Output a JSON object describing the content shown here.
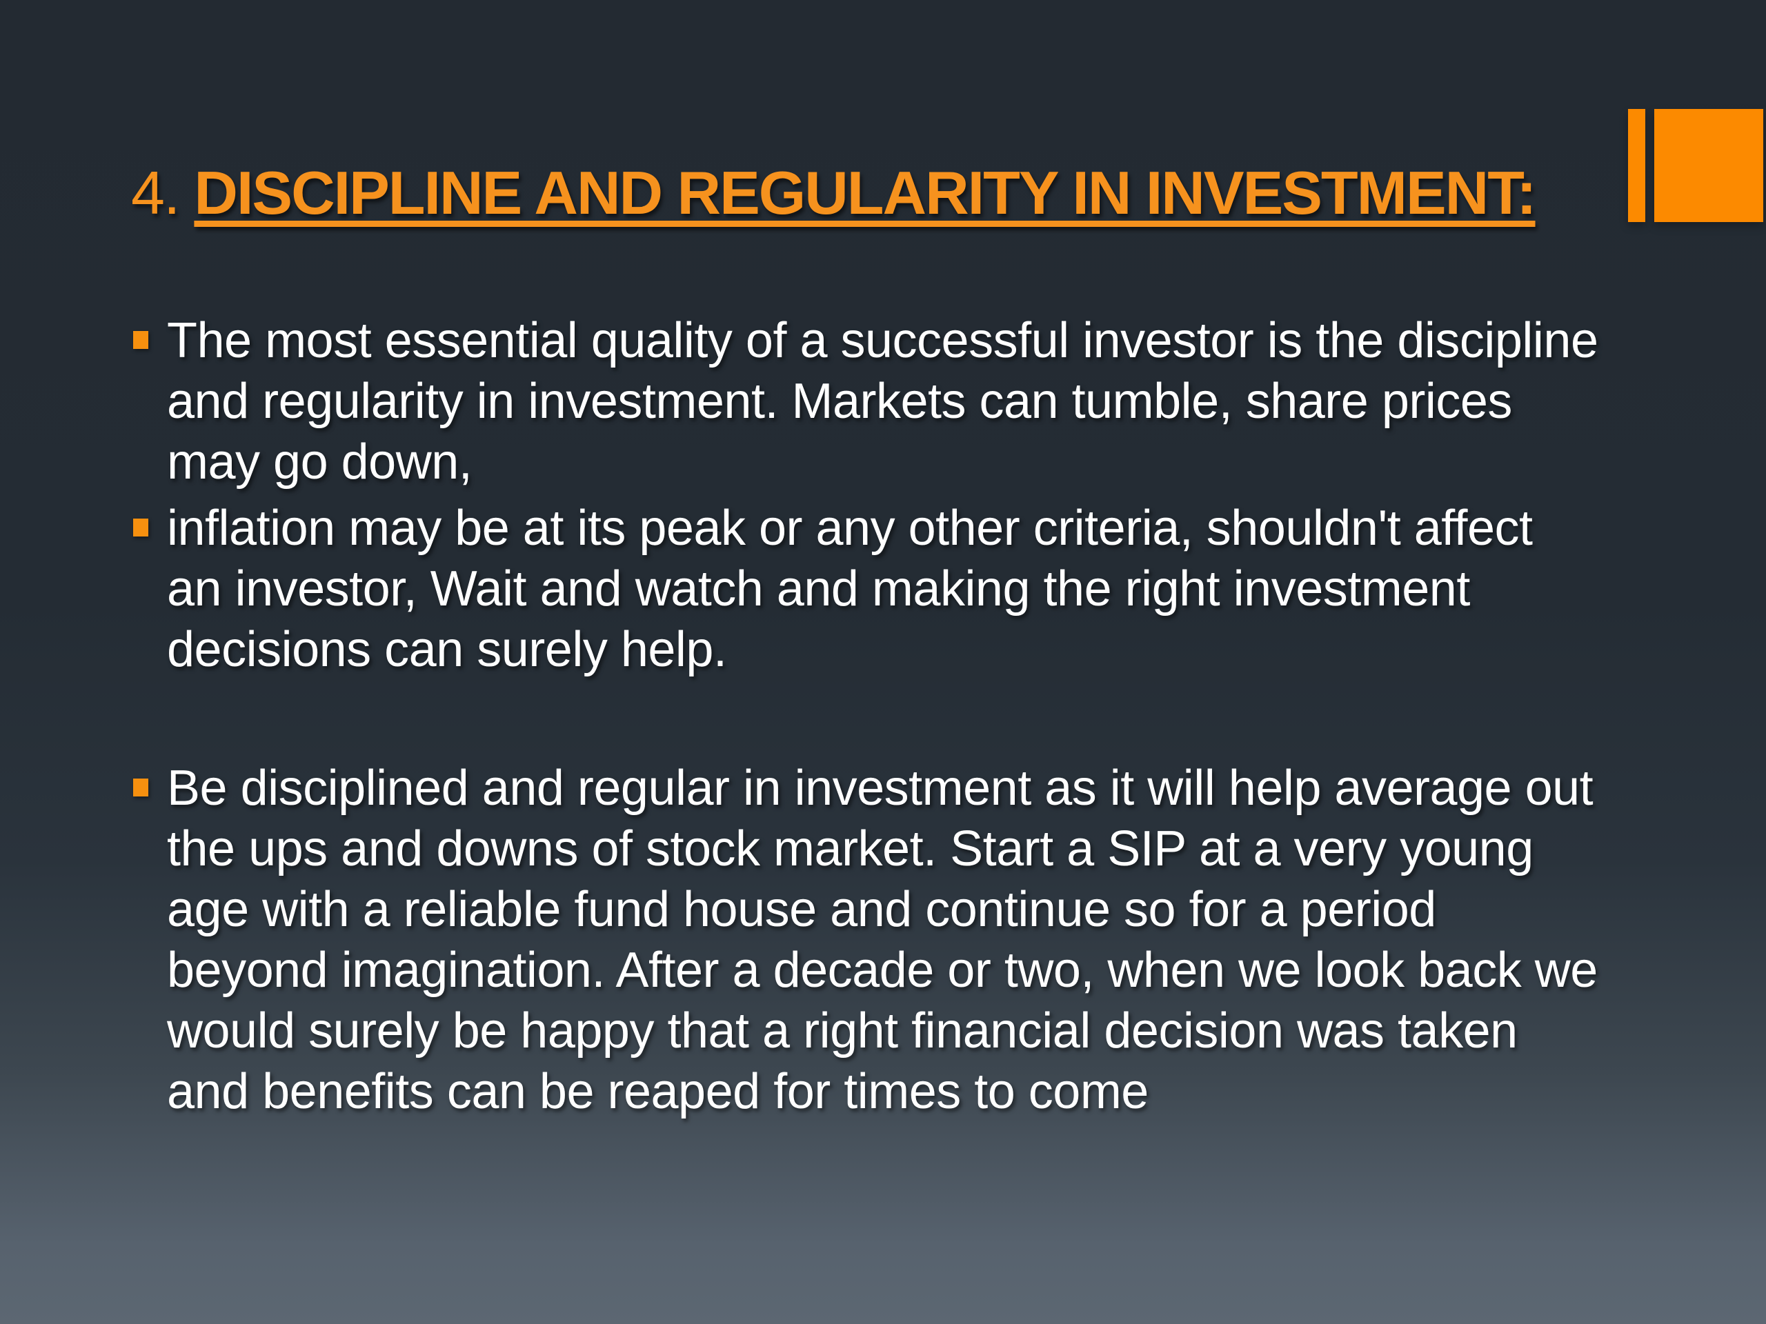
{
  "slide": {
    "title": {
      "number": "4.",
      "text": "DISCIPLINE AND REGULARITY IN INVESTMENT:"
    },
    "bullets": [
      {
        "text": "The most essential quality of a successful investor is the discipline and regularity in investment. Markets can tumble, share prices may go down,",
        "lines": [
          "The most essential quality of a successful investor is the discipline",
          "and regularity in investment. Markets can tumble, share prices",
          "may go down,"
        ]
      },
      {
        "text": "inflation may be at its peak or any other criteria, shouldn't affect an investor, Wait and watch and making the right investment decisions can surely help.",
        "lines": [
          "inflation may be at its peak or any other criteria, shouldn't affect",
          "an investor, Wait and watch and making the right investment",
          "decisions can surely help."
        ]
      },
      {
        "text": "Be disciplined and regular in investment as it will help average out the ups and downs of stock market. Start a SIP at a very young age with a reliable fund house and continue so for a period beyond imagination. After a decade or two, when we look back we would surely be happy that a right financial decision was taken and benefits can be reaped for times to come",
        "lines": [
          "Be disciplined and regular in investment as it will help average out",
          "the ups and downs of stock market. Start a SIP at a very young",
          "age with a reliable fund house and continue so for a period",
          "beyond imagination. After a decade or two, when we look back we",
          "would surely be happy that a right financial decision was taken",
          "and benefits can be reaped for times to come"
        ]
      }
    ],
    "colors": {
      "accent_orange": "#F6921E",
      "bar_orange": "#FC8A00",
      "bullet_orange": "#F6900F",
      "bg_top": "#232A32",
      "bg_bottom": "#5C6772",
      "body_text": "#FFFFFF"
    }
  }
}
